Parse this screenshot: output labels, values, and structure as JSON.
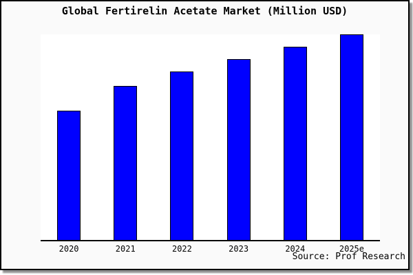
{
  "chart": {
    "title": "Global Fertirelin Acetate Market (Million USD)",
    "source_text": "Source: Prof Research",
    "colors": {
      "bar_fill": "#0000ff",
      "bar_border": "#000000",
      "figure_background": "#fafafa",
      "plot_background": "#ffffff",
      "frame_border": "#000000"
    }
  },
  "chart_data": {
    "type": "bar",
    "title": "Global Fertirelin Acetate Market (Million USD)",
    "categories": [
      "2020",
      "2021",
      "2022",
      "2023",
      "2024",
      "2025e"
    ],
    "values": [
      63,
      75,
      82,
      88,
      94,
      100
    ],
    "xlabel": "",
    "ylabel": "",
    "ylim": [
      0,
      100
    ],
    "grid": false,
    "legend": false,
    "y_axis_shown": false,
    "note": "No y-axis or value labels are visible; values are estimated from bar heights normalized so that the tallest bar (2025e) = 100."
  }
}
